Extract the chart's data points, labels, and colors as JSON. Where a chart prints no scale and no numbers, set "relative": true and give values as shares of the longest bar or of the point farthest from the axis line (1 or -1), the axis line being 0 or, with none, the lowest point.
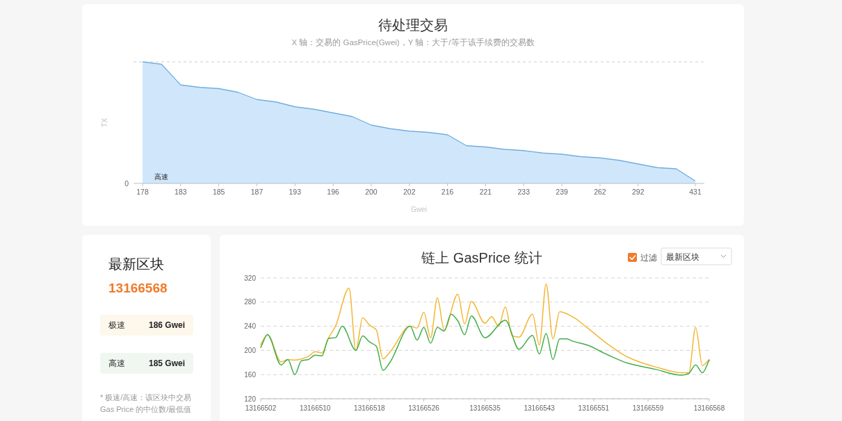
{
  "chart_data": [
    {
      "type": "area",
      "title": "待处理交易",
      "subtitle": "X 轴：交易的 GasPrice(Gwei)，Y 轴：大于/等于该手续费的交易数",
      "xlabel": "Gwei",
      "ylabel": "TX",
      "relative": true,
      "categories": [
        "178",
        null,
        "183",
        null,
        "185",
        null,
        "187",
        null,
        "193",
        null,
        "196",
        null,
        "200",
        null,
        "202",
        null,
        "216",
        null,
        "221",
        null,
        "233",
        null,
        "239",
        null,
        "262",
        null,
        "292",
        null,
        null,
        "431"
      ],
      "values": [
        1,
        0.98,
        0.81,
        0.79,
        0.78,
        0.75,
        0.69,
        0.67,
        0.63,
        0.61,
        0.58,
        0.55,
        0.48,
        0.45,
        0.43,
        0.42,
        0.4,
        0.31,
        0.3,
        0.28,
        0.27,
        0.25,
        0.24,
        0.22,
        0.21,
        0.19,
        0.16,
        0.13,
        0.12,
        0.02
      ],
      "color": "#d0e7fb",
      "ref_lines": [
        {
          "axis": "y",
          "value": 1,
          "color": "#cccccc",
          "line_style": "dashed"
        }
      ],
      "annotations": [
        "0",
        "高速"
      ]
    },
    {
      "type": "other",
      "title": "最新区块",
      "subtitle": "13166568",
      "categories": [
        "极速",
        "高速"
      ],
      "value_labels": [
        "186 Gwei",
        "185 Gwei"
      ],
      "colors": [
        "#fdf7ec",
        "#f0f7f1"
      ],
      "annotations": [
        "* 极速/高速：该区块中交易 Gas Price 的中位数/最低值"
      ]
    },
    {
      "type": "line",
      "title": "链上 GasPrice 统计",
      "xlim": [
        13166502,
        13166568
      ],
      "xticks": [
        13166502,
        13166510,
        13166518,
        13166526,
        13166535,
        13166543,
        13166551,
        13166559,
        13166568
      ],
      "ylim": [
        120,
        320
      ],
      "yticks": [
        120,
        160,
        200,
        240,
        280,
        320
      ],
      "grid": "y",
      "series": [
        {
          "color": "#f3b632",
          "x": [
            13166502,
            13166503,
            13166505,
            13166506,
            13166507,
            13166509,
            13166510,
            13166511,
            13166512,
            13166513,
            13166515,
            13166516,
            13166517,
            13166518,
            13166519,
            13166520,
            13166521,
            13166524,
            13166525,
            13166526,
            13166527,
            13166528,
            13166529,
            13166531,
            13166532,
            13166533,
            13166535,
            13166536,
            13166537,
            13166538,
            13166539,
            13166540,
            13166542,
            13166543,
            13166544,
            13166545,
            13166546,
            13166548,
            13166550,
            13166553,
            13166556,
            13166560,
            13166564,
            13166565,
            13166566,
            13166567,
            13166568
          ],
          "values": [
            210,
            226,
            181,
            185,
            184,
            190,
            198,
            196,
            221,
            240,
            303,
            200,
            254,
            242,
            234,
            186,
            197,
            240,
            237,
            263,
            221,
            287,
            234,
            293,
            244,
            281,
            245,
            256,
            240,
            272,
            224,
            222,
            260,
            209,
            310,
            219,
            264,
            255,
            238,
            211,
            189,
            173,
            163,
            163,
            238,
            175,
            185
          ]
        },
        {
          "color": "#43ad4b",
          "x": [
            13166502,
            13166503,
            13166505,
            13166506,
            13166507,
            13166508,
            13166509,
            13166510,
            13166511,
            13166512,
            13166513,
            13166514,
            13166516,
            13166517,
            13166518,
            13166519,
            13166520,
            13166521,
            13166524,
            13166525,
            13166526,
            13166527,
            13166528,
            13166529,
            13166530,
            13166531,
            13166532,
            13166533,
            13166535,
            13166538,
            13166540,
            13166542,
            13166543,
            13166544,
            13166545,
            13166546,
            13166547,
            13166548,
            13166550,
            13166553,
            13166556,
            13166560,
            13166564,
            13166565,
            13166566,
            13166567,
            13166568
          ],
          "values": [
            205,
            226,
            176,
            185,
            160,
            183,
            185,
            192,
            191,
            220,
            221,
            240,
            200,
            224,
            214,
            207,
            167,
            180,
            240,
            217,
            238,
            212,
            238,
            232,
            260,
            249,
            226,
            257,
            221,
            250,
            202,
            225,
            194,
            228,
            185,
            219,
            219,
            215,
            209,
            193,
            179,
            169,
            159,
            162,
            176,
            163,
            184
          ]
        }
      ],
      "annotations": [
        "过滤",
        "最新区块"
      ]
    }
  ]
}
